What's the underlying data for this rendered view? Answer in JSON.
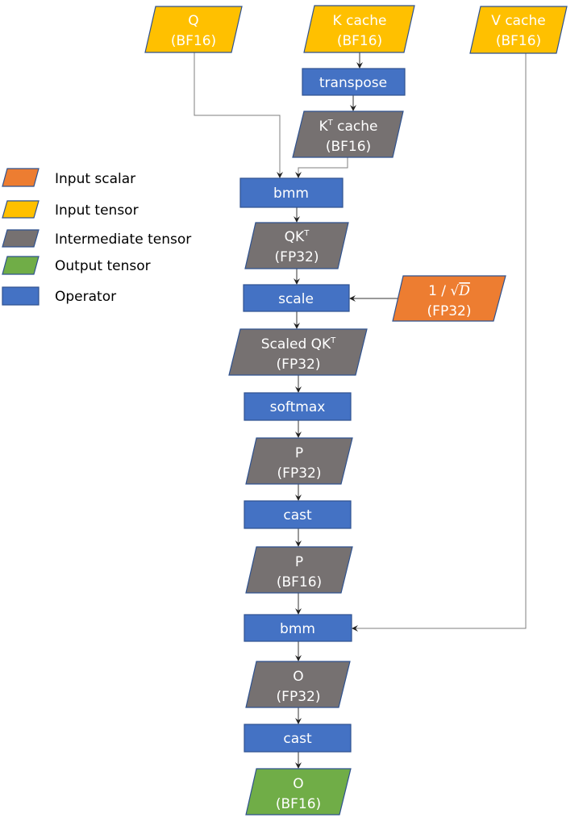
{
  "colors": {
    "input_scalar": "#ED7D31",
    "input_tensor": "#FFC000",
    "intermediate_tensor": "#767171",
    "output_tensor": "#70AD47",
    "operator": "#4472C4",
    "outline": "#2F528F"
  },
  "legend": [
    {
      "label": "Input scalar",
      "kind": "input_scalar"
    },
    {
      "label": "Input tensor",
      "kind": "input_tensor"
    },
    {
      "label": "Intermediate tensor",
      "kind": "intermediate_tensor"
    },
    {
      "label": "Output tensor",
      "kind": "output_tensor"
    },
    {
      "label": "Operator",
      "kind": "operator"
    }
  ],
  "nodes": {
    "q": {
      "line1": "Q",
      "line2": "(BF16)"
    },
    "k_cache": {
      "line1": "K cache",
      "line2": "(BF16)"
    },
    "v_cache": {
      "line1": "V cache",
      "line2": "(BF16)"
    },
    "transpose": {
      "label": "transpose"
    },
    "kt_cache": {
      "line1_pre": "K",
      "line1_sup": "T",
      "line1_post": " cache",
      "line2": "(BF16)"
    },
    "bmm1": {
      "label": "bmm"
    },
    "qkt": {
      "line1_pre": "QK",
      "line1_sup": "T",
      "line2": "(FP32)"
    },
    "scale": {
      "label": "scale"
    },
    "inv_sqrt_d": {
      "line1_pre": "1 / √",
      "line1_var": "D",
      "line2": "(FP32)"
    },
    "scaled_qkt": {
      "line1_pre": "Scaled QK",
      "line1_sup": "T",
      "line2": "(FP32)"
    },
    "softmax": {
      "label": "softmax"
    },
    "p_fp32": {
      "line1": "P",
      "line2": "(FP32)"
    },
    "cast1": {
      "label": "cast"
    },
    "p_bf16": {
      "line1": "P",
      "line2": "(BF16)"
    },
    "bmm2": {
      "label": "bmm"
    },
    "o_fp32": {
      "line1": "O",
      "line2": "(FP32)"
    },
    "cast2": {
      "label": "cast"
    },
    "o_bf16": {
      "line1": "O",
      "line2": "(BF16)"
    }
  }
}
